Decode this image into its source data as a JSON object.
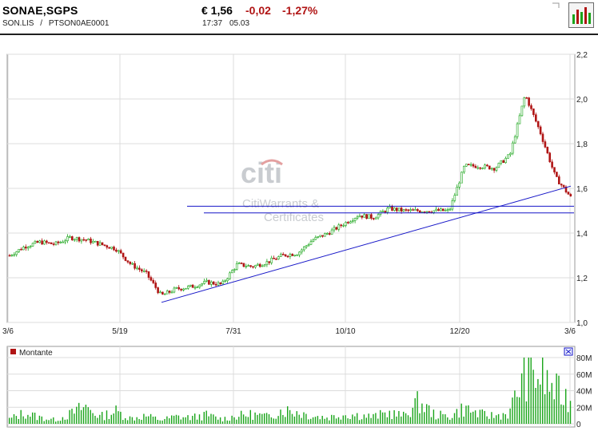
{
  "header": {
    "ticker": "SONAE,SGPS",
    "exchange_code": "SON.LIS",
    "separator": "/",
    "isin": "PTSON0AE0001",
    "price": "€ 1,56",
    "change": "-0,02",
    "change_pct": "-1,27%",
    "time": "17:37",
    "date": "05.03",
    "chart_icon": "bar-chart-icon",
    "corner_icon": "chart-corner-icon"
  },
  "colors": {
    "up": "#1aa51a",
    "down": "#b01414",
    "trendline": "#1616c8",
    "grid": "#dcdcdc",
    "volume": "#1aa51a"
  },
  "watermark": {
    "logo": "citi",
    "line1": "CitiWarrants &",
    "line2": "Certificates"
  },
  "volume_panel": {
    "legend_label": "Montante",
    "close_icon": "close-box-icon"
  },
  "chart_data": [
    {
      "type": "candlestick",
      "title": "",
      "x_tick_labels": [
        "3/6",
        "5/19",
        "7/31",
        "10/10",
        "12/20",
        "3/6"
      ],
      "y_tick_labels": [
        "2,2",
        "2,0",
        "1,8",
        "1,6",
        "1,4",
        "1,2",
        "1,0"
      ],
      "ylim": [
        1.0,
        2.2
      ],
      "grid": true,
      "close_series": [
        1.3,
        1.34,
        1.36,
        1.35,
        1.38,
        1.37,
        1.35,
        1.33,
        1.26,
        1.22,
        1.12,
        1.15,
        1.16,
        1.18,
        1.17,
        1.26,
        1.25,
        1.27,
        1.3,
        1.31,
        1.37,
        1.4,
        1.44,
        1.48,
        1.47,
        1.51,
        1.5,
        1.5,
        1.5,
        1.5,
        1.7,
        1.7,
        1.69,
        1.75,
        2.02,
        1.85,
        1.65,
        1.56
      ],
      "annotations": {
        "trendline": [
          [
            1.09,
            1.61
          ]
        ],
        "horizontal_lines": [
          1.52,
          1.49
        ]
      }
    },
    {
      "type": "bar",
      "title": "",
      "series": [
        {
          "name": "Montante",
          "values": [
            6,
            14,
            8,
            5,
            12,
            22,
            9,
            16,
            7,
            10,
            5,
            9,
            8,
            11,
            6,
            10,
            12,
            9,
            18,
            15,
            10,
            8,
            12,
            11,
            9,
            14,
            10,
            28,
            12,
            9,
            20,
            12,
            10,
            14,
            68,
            60,
            42,
            30
          ]
        }
      ],
      "y_tick_labels": [
        "80M",
        "60M",
        "40M",
        "20M",
        "0"
      ],
      "ylim": [
        0,
        80
      ],
      "unit": "M"
    }
  ]
}
